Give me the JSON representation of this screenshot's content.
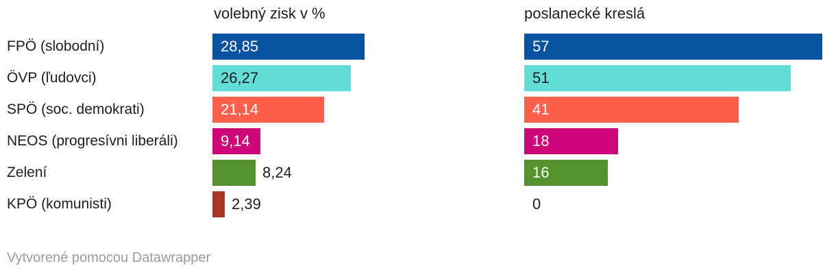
{
  "chart_data": {
    "type": "bar",
    "title": "",
    "categories": [
      "FPÖ (slobodní)",
      "ÖVP (ľudovci)",
      "SPÖ (soc. demokrati)",
      "NEOS (progresívni liberáli)",
      "Zelení",
      "KPÖ (komunisti)"
    ],
    "row_colors": [
      "#0853a0",
      "#63ded7",
      "#fc614e",
      "#cd0779",
      "#54922b",
      "#a93522"
    ],
    "inside_text_colors": [
      "#ffffff",
      "#1d1d1d",
      "#ffffff",
      "#ffffff",
      "#ffffff",
      "#1d1d1d"
    ],
    "series": [
      {
        "name": "volebný zisk v %",
        "values": [
          28.85,
          26.27,
          21.14,
          9.14,
          8.24,
          2.39
        ],
        "value_labels": [
          "28,85",
          "26,27",
          "21,14",
          "9,14",
          "8,24",
          "2,39"
        ],
        "label_placement": [
          "inside",
          "inside",
          "inside",
          "inside",
          "outside",
          "outside"
        ],
        "axis_max": 28.85
      },
      {
        "name": "poslanecké kreslá",
        "values": [
          57,
          51,
          41,
          18,
          16,
          0
        ],
        "value_labels": [
          "57",
          "51",
          "41",
          "18",
          "16",
          "0"
        ],
        "label_placement": [
          "inside",
          "inside",
          "inside",
          "inside",
          "inside",
          "outside"
        ],
        "axis_max": 57
      }
    ],
    "legend": null,
    "grid": false
  },
  "text_colors": {
    "category_label": "#1d1d1d",
    "outside_value": "#1d1d1d",
    "attribution": "#9b9b9b"
  },
  "footer": {
    "text": "Vytvorené pomocou Datawrapper"
  }
}
